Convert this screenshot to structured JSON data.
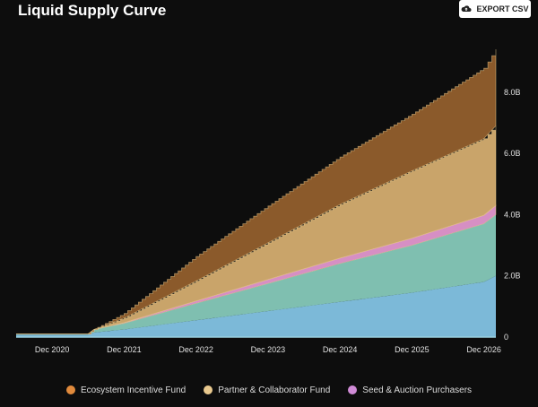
{
  "header": {
    "title": "Liquid Supply Curve",
    "export_label": "EXPORT CSV",
    "export_icon": "cloud-upload-icon"
  },
  "colors": {
    "background": "#0d0d0d",
    "ecosystem": "#8b5a2b",
    "partner": "#c9a46a",
    "seed": "#d68fc4",
    "teal_base": "#7fbfb0",
    "blue_base": "#7cb9d8",
    "ecosystem_legend": "#e08a3c",
    "partner_legend": "#e9c98e",
    "seed_legend": "#d08bd6"
  },
  "chart_data": {
    "type": "area",
    "title": "Liquid Supply Curve",
    "x_ticks": [
      "Dec 2020",
      "Dec 2021",
      "Dec 2022",
      "Dec 2023",
      "Dec 2024",
      "Dec 2025",
      "Dec 2026"
    ],
    "y_ticks": [
      "0",
      "2.0B",
      "4.0B",
      "6.0B",
      "8.0B"
    ],
    "ylim": [
      0,
      9.4
    ],
    "xlim": [
      "Jun 2020",
      "Feb 2027"
    ],
    "stacked": true,
    "legend_position": "bottom",
    "x": [
      "Jun 2020",
      "Dec 2020",
      "Jun 2021",
      "Jul 2021",
      "Dec 2021",
      "Dec 2022",
      "Dec 2023",
      "Dec 2024",
      "Dec 2025",
      "Dec 2026",
      "Feb 2027"
    ],
    "series": [
      {
        "name": "",
        "color_key": "blue_base",
        "values": [
          0.08,
          0.08,
          0.08,
          0.15,
          0.25,
          0.55,
          0.85,
          1.15,
          1.45,
          1.8,
          2.0
        ]
      },
      {
        "name": "",
        "color_key": "teal_base",
        "values": [
          0.02,
          0.02,
          0.02,
          0.1,
          0.2,
          0.55,
          0.9,
          1.25,
          1.55,
          1.9,
          2.0
        ]
      },
      {
        "name": "Seed & Auction Purchasers",
        "color_key": "seed",
        "values": [
          0.0,
          0.0,
          0.0,
          0.0,
          0.02,
          0.08,
          0.13,
          0.18,
          0.23,
          0.28,
          0.3
        ]
      },
      {
        "name": "Partner & Collaborator Fund",
        "color_key": "partner",
        "values": [
          0.0,
          0.0,
          0.0,
          0.0,
          0.15,
          0.65,
          1.2,
          1.75,
          2.2,
          2.5,
          2.6
        ]
      },
      {
        "name": "Ecosystem Incentive Fund",
        "color_key": "ecosystem",
        "values": [
          0.0,
          0.0,
          0.0,
          0.0,
          0.15,
          0.8,
          1.2,
          1.55,
          1.85,
          2.3,
          2.5
        ]
      }
    ],
    "legend": [
      {
        "label": "Ecosystem Incentive Fund",
        "color_key": "ecosystem_legend"
      },
      {
        "label": "Partner & Collaborator Fund",
        "color_key": "partner_legend"
      },
      {
        "label": "Seed & Auction Purchasers",
        "color_key": "seed_legend"
      }
    ]
  }
}
